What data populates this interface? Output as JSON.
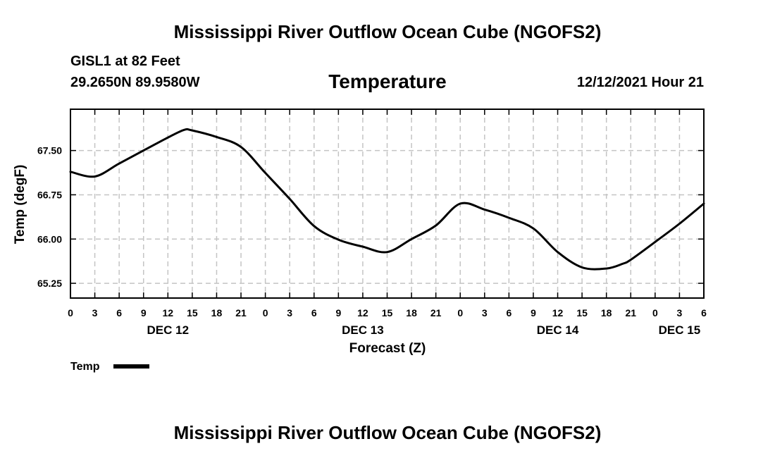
{
  "header": {
    "main_title": "Mississippi River Outflow Ocean Cube (NGOFS2)",
    "station": "GISL1 at 82 Feet",
    "coordinates": "29.2650N  89.9580W",
    "datetime": "12/12/2021 Hour 21",
    "bottom_title": "Mississippi River Outflow Ocean Cube (NGOFS2)"
  },
  "chart_data": {
    "type": "line",
    "title": "Temperature",
    "xlabel": "Forecast (Z)",
    "ylabel": "Temp (degF)",
    "x_unit": "hours since DEC 12 00Z",
    "xlim": [
      0,
      78
    ],
    "ylim": [
      65.0,
      68.2
    ],
    "y_ticks": [
      65.25,
      66.0,
      66.75,
      67.5
    ],
    "y_tick_labels": [
      "65.25",
      "66.00",
      "66.75",
      "67.50"
    ],
    "x_ticks": [
      0,
      3,
      6,
      9,
      12,
      15,
      18,
      21,
      24,
      27,
      30,
      33,
      36,
      39,
      42,
      45,
      48,
      51,
      54,
      57,
      60,
      63,
      66,
      69,
      72,
      75,
      78
    ],
    "x_tick_labels": [
      "0",
      "3",
      "6",
      "9",
      "12",
      "15",
      "18",
      "21",
      "0",
      "3",
      "6",
      "9",
      "12",
      "15",
      "18",
      "21",
      "0",
      "3",
      "6",
      "9",
      "12",
      "15",
      "18",
      "21",
      "0",
      "3",
      "6"
    ],
    "day_labels": [
      {
        "x": 12,
        "label": "DEC 12"
      },
      {
        "x": 36,
        "label": "DEC 13"
      },
      {
        "x": 60,
        "label": "DEC 14"
      },
      {
        "x": 75,
        "label": "DEC 15"
      }
    ],
    "grid": true,
    "legend": {
      "position": "bottom-left",
      "entries": [
        "Temp"
      ]
    },
    "series": [
      {
        "name": "Temp",
        "x": [
          0,
          3,
          6,
          9,
          12,
          14,
          15,
          18,
          21,
          24,
          27,
          30,
          33,
          36,
          39,
          42,
          45,
          48,
          51,
          54,
          57,
          60,
          63,
          66,
          68,
          69,
          72,
          75,
          78
        ],
        "y": [
          67.14,
          67.06,
          67.28,
          67.5,
          67.72,
          67.85,
          67.84,
          67.73,
          67.56,
          67.12,
          66.68,
          66.22,
          65.99,
          65.87,
          65.78,
          66.0,
          66.23,
          66.6,
          66.5,
          66.36,
          66.18,
          65.78,
          65.52,
          65.5,
          65.58,
          65.65,
          65.95,
          66.26,
          66.6
        ]
      }
    ]
  }
}
